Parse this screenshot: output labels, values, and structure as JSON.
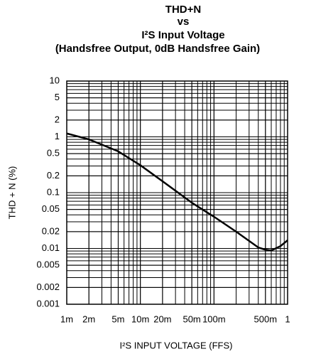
{
  "chart_data": {
    "type": "line",
    "title": [
      "THD+N",
      "vs",
      "I²S Input Voltage",
      "(Handsfree Output, 0dB Handsfree Gain)"
    ],
    "x_label": "I²S INPUT VOLTAGE (FFS)",
    "y_label": "THD + N (%)",
    "xlog": true,
    "ylog": true,
    "grid": true,
    "xlim": [
      0.001,
      1
    ],
    "ylim": [
      0.001,
      10
    ],
    "xticks": [
      {
        "value": 0.001,
        "label": "1m"
      },
      {
        "value": 0.002,
        "label": "2m"
      },
      {
        "value": 0.005,
        "label": "5m"
      },
      {
        "value": 0.01,
        "label": "10m"
      },
      {
        "value": 0.02,
        "label": "20m"
      },
      {
        "value": 0.05,
        "label": "50m"
      },
      {
        "value": 0.1,
        "label": "100m"
      },
      {
        "value": 0.5,
        "label": "500m"
      },
      1
    ],
    "yticks": [
      10,
      5,
      2,
      1,
      0.5,
      0.2,
      0.1,
      0.05,
      0.02,
      0.01,
      0.005,
      0.002,
      0.001
    ],
    "series": [
      {
        "color": "#000000",
        "x": [
          0.001,
          0.002,
          0.005,
          0.01,
          0.02,
          0.05,
          0.1,
          0.2,
          0.4,
          0.5,
          0.6,
          0.8,
          1
        ],
        "values": [
          1.15,
          0.9,
          0.55,
          0.31,
          0.16,
          0.066,
          0.037,
          0.02,
          0.0104,
          0.0095,
          0.0092,
          0.011,
          0.014
        ]
      }
    ]
  }
}
